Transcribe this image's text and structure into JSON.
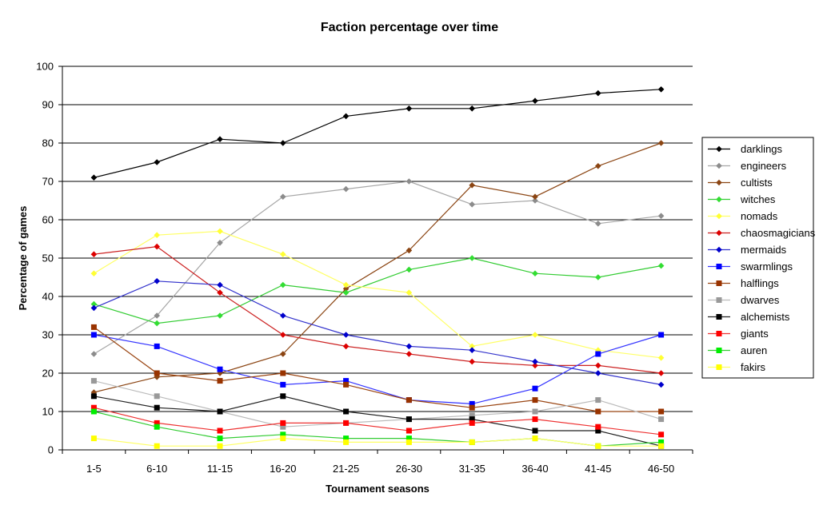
{
  "chart_data": {
    "type": "line",
    "title": "Faction percentage over time",
    "xlabel": "Tournament seasons",
    "ylabel": "Percentage of games",
    "ylim": [
      0,
      100
    ],
    "yticks": [
      0,
      10,
      20,
      30,
      40,
      50,
      60,
      70,
      80,
      90,
      100
    ],
    "grid": "horizontal",
    "legend_position": "right",
    "categories": [
      "1-5",
      "6-10",
      "11-15",
      "16-20",
      "21-25",
      "26-30",
      "31-35",
      "36-40",
      "41-45",
      "46-50"
    ],
    "series": [
      {
        "name": "darklings",
        "line_color": "#000000",
        "marker_color": "#000000",
        "marker": "diamond",
        "values": [
          71,
          75,
          81,
          80,
          87,
          89,
          89,
          91,
          93,
          94
        ]
      },
      {
        "name": "engineers",
        "line_color": "#a6a6a6",
        "marker_color": "#8c8c8c",
        "marker": "diamond",
        "values": [
          25,
          35,
          54,
          66,
          68,
          70,
          64,
          65,
          59,
          61
        ]
      },
      {
        "name": "cultists",
        "line_color": "#8b4513",
        "marker_color": "#8b4513",
        "marker": "diamond",
        "values": [
          15,
          19,
          20,
          25,
          42,
          52,
          69,
          66,
          74,
          80
        ]
      },
      {
        "name": "witches",
        "line_color": "#33cc33",
        "marker_color": "#33dd33",
        "marker": "diamond",
        "values": [
          38,
          33,
          35,
          43,
          41,
          47,
          50,
          46,
          45,
          48
        ]
      },
      {
        "name": "nomads",
        "line_color": "#ffff66",
        "marker_color": "#ffff33",
        "marker": "diamond",
        "values": [
          46,
          56,
          57,
          51,
          43,
          41,
          27,
          30,
          26,
          24
        ]
      },
      {
        "name": "chaosmagicians",
        "line_color": "#cc2222",
        "marker_color": "#dd0000",
        "marker": "diamond",
        "values": [
          51,
          53,
          41,
          30,
          27,
          25,
          23,
          22,
          22,
          20
        ]
      },
      {
        "name": "mermaids",
        "line_color": "#3333cc",
        "marker_color": "#0000cc",
        "marker": "diamond",
        "values": [
          37,
          44,
          43,
          35,
          30,
          27,
          26,
          23,
          20,
          17
        ]
      },
      {
        "name": "swarmlings",
        "line_color": "#3333ff",
        "marker_color": "#0000ff",
        "marker": "square",
        "values": [
          30,
          27,
          21,
          17,
          18,
          13,
          12,
          16,
          25,
          30
        ]
      },
      {
        "name": "halflings",
        "line_color": "#994411",
        "marker_color": "#993300",
        "marker": "square",
        "values": [
          32,
          20,
          18,
          20,
          17,
          13,
          11,
          13,
          10,
          10
        ]
      },
      {
        "name": "dwarves",
        "line_color": "#bbbbbb",
        "marker_color": "#999999",
        "marker": "square",
        "values": [
          18,
          14,
          10,
          6,
          7,
          8,
          9,
          10,
          13,
          8
        ]
      },
      {
        "name": "alchemists",
        "line_color": "#222222",
        "marker_color": "#000000",
        "marker": "square",
        "values": [
          14,
          11,
          10,
          14,
          10,
          8,
          8,
          5,
          5,
          1
        ]
      },
      {
        "name": "giants",
        "line_color": "#ee3333",
        "marker_color": "#ff0000",
        "marker": "square",
        "values": [
          11,
          7,
          5,
          7,
          7,
          5,
          7,
          8,
          6,
          4
        ]
      },
      {
        "name": "auren",
        "line_color": "#33cc33",
        "marker_color": "#00ee00",
        "marker": "square",
        "values": [
          10,
          6,
          3,
          4,
          3,
          3,
          2,
          3,
          1,
          2
        ]
      },
      {
        "name": "fakirs",
        "line_color": "#ffff66",
        "marker_color": "#ffff00",
        "marker": "square",
        "values": [
          3,
          1,
          1,
          3,
          2,
          2,
          2,
          3,
          1,
          1
        ]
      }
    ]
  }
}
